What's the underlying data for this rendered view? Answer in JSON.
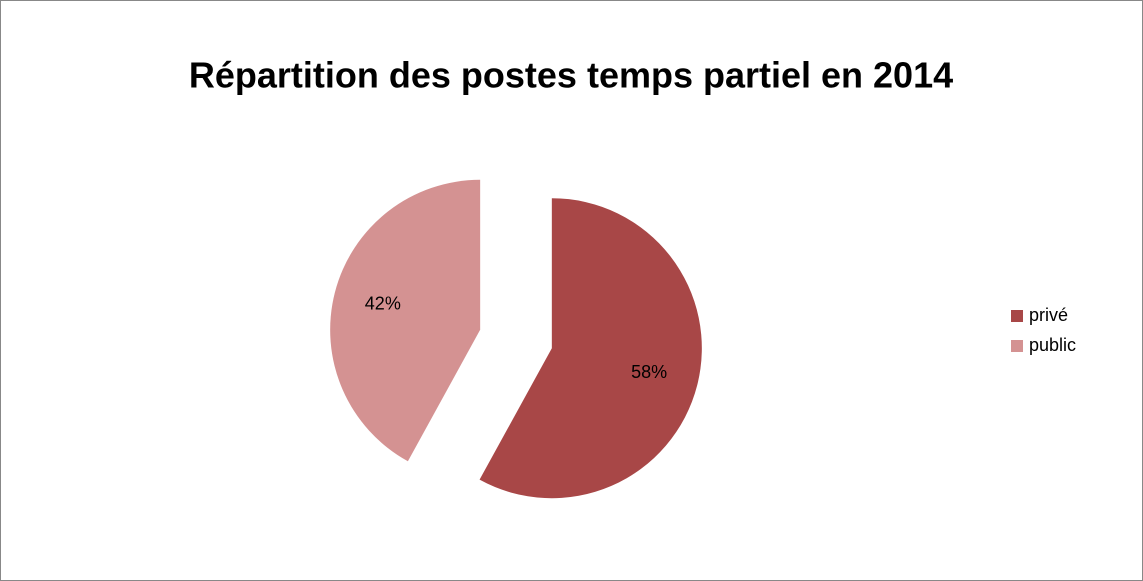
{
  "chart_data": {
    "type": "pie",
    "title": "Répartition des postes temps partiel en 2014",
    "categories": [
      "privé",
      "public"
    ],
    "values": [
      58,
      42
    ],
    "value_labels": [
      "58%",
      "42%"
    ],
    "colors": [
      "#a84747",
      "#d49292"
    ],
    "legend": "right"
  }
}
